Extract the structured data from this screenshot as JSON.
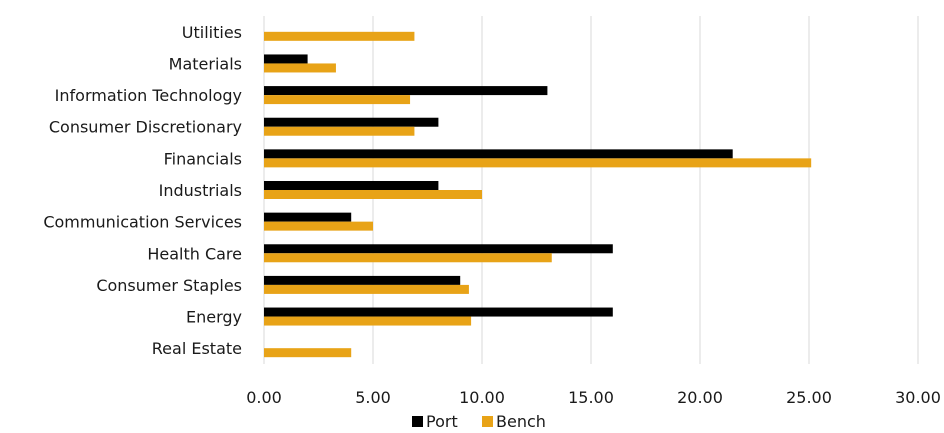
{
  "chart_data": {
    "type": "bar",
    "orientation": "horizontal",
    "categories": [
      "Utilities",
      "Materials",
      "Information Technology",
      "Consumer Discretionary",
      "Financials",
      "Industrials",
      "Communication Services",
      "Health Care",
      "Consumer Staples",
      "Energy",
      "Real Estate"
    ],
    "series": [
      {
        "name": "Port",
        "color": "#000000",
        "values": [
          0,
          2.0,
          13.0,
          8.0,
          21.5,
          8.0,
          4.0,
          16.0,
          9.0,
          16.0,
          0
        ]
      },
      {
        "name": "Bench",
        "color": "#E8A317",
        "values": [
          6.9,
          3.3,
          6.7,
          6.9,
          25.1,
          10.0,
          5.0,
          13.2,
          9.4,
          9.5,
          4.0
        ]
      }
    ],
    "xlim": [
      0,
      30
    ],
    "xticks": [
      "0.00",
      "5.00",
      "10.00",
      "15.00",
      "20.00",
      "25.00",
      "30.00"
    ],
    "xtick_values": [
      0,
      5,
      10,
      15,
      20,
      25,
      30
    ],
    "grid": true,
    "legend_position": "bottom"
  }
}
